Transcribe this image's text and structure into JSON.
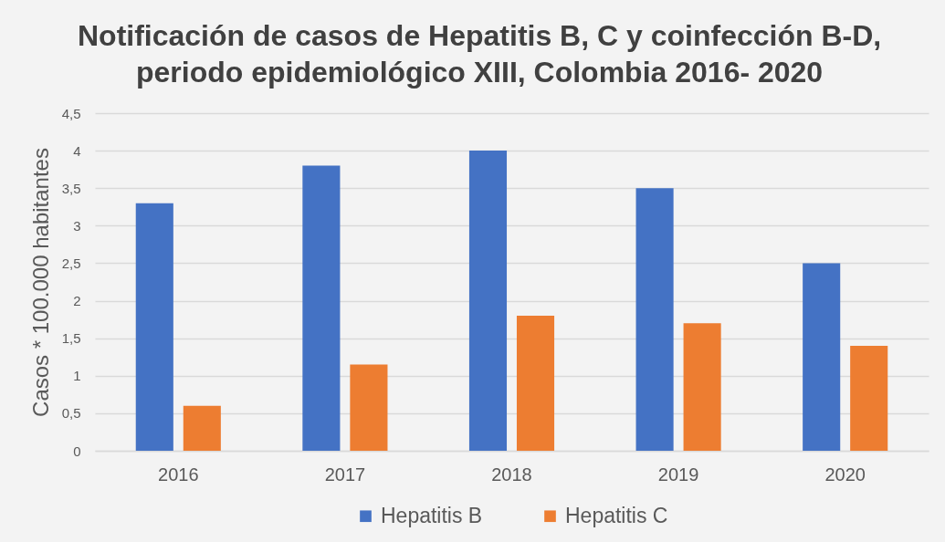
{
  "chart_data": {
    "type": "bar",
    "title": "Notificación de casos de Hepatitis B, C y coinfección B-D,\nperiodo epidemiológico XIII, Colombia 2016- 2020",
    "ylabel": "Casos * 100.000 habitantes",
    "categories": [
      "2016",
      "2017",
      "2018",
      "2019",
      "2020"
    ],
    "series": [
      {
        "name": "Hepatitis B",
        "color": "#4472c4",
        "values": [
          3.3,
          3.8,
          4.0,
          3.5,
          2.5
        ]
      },
      {
        "name": "Hepatitis C",
        "color": "#ed7d31",
        "values": [
          0.6,
          1.15,
          1.8,
          1.7,
          1.4
        ]
      }
    ],
    "ylim": [
      0,
      4.5
    ],
    "yticks": [
      0,
      {
        "value": 0.5,
        "label": "0,5"
      },
      1,
      {
        "value": 1.5,
        "label": "1,5"
      },
      2,
      {
        "value": 2.5,
        "label": "2,5"
      },
      3,
      {
        "value": 3.5,
        "label": "3,5"
      },
      4,
      {
        "value": 4.5,
        "label": "4,5"
      }
    ],
    "grid": "y",
    "legend": "bottom"
  }
}
